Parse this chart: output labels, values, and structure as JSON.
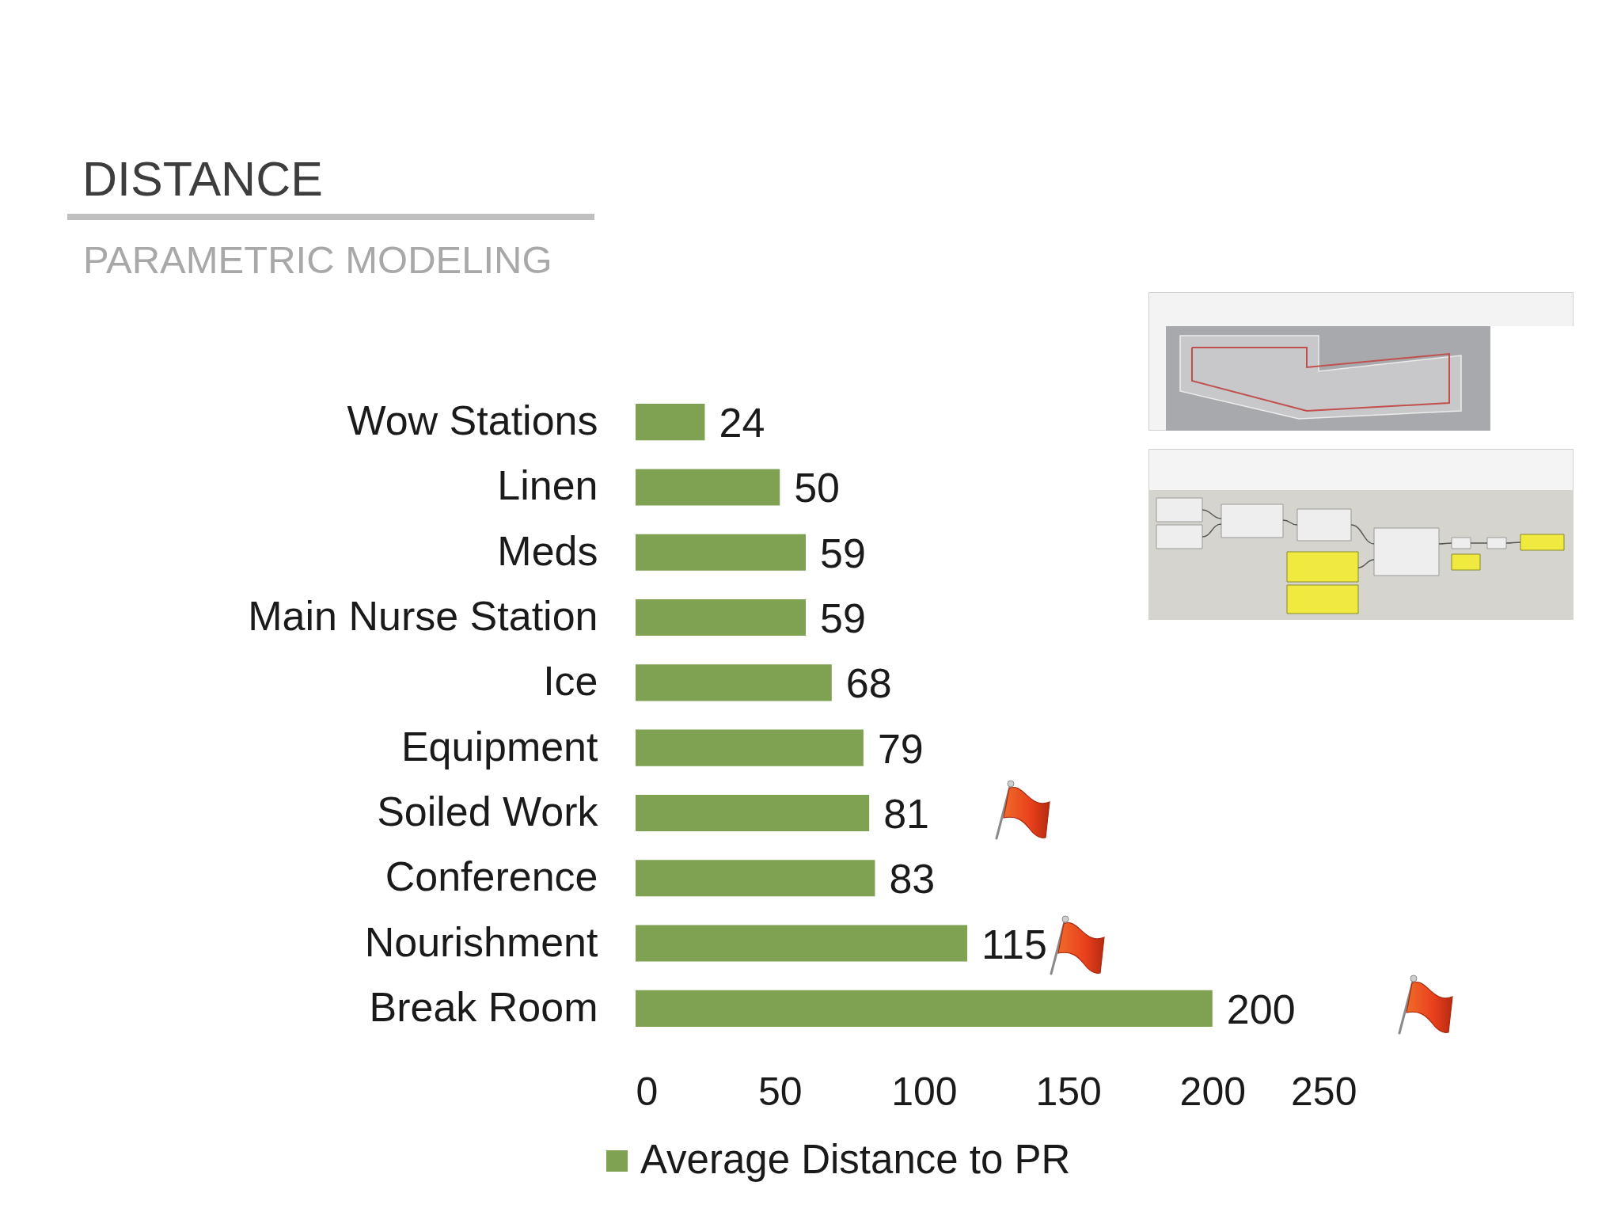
{
  "chart_data": {
    "type": "bar",
    "orientation": "horizontal",
    "title": "DISTANCE",
    "subtitle": "PARAMETRIC MODELING",
    "categories": [
      "Wow Stations",
      "Linen",
      "Meds",
      "Main Nurse Station",
      "Ice",
      "Equipment",
      "Soiled Work",
      "Conference",
      "Nourishment",
      "Break Room"
    ],
    "series": [
      {
        "name": "Average Distance to PR",
        "color": "#7ea152",
        "values": [
          24,
          50,
          59,
          59,
          68,
          79,
          81,
          83,
          115,
          200
        ]
      }
    ],
    "xlim": [
      0,
      250
    ],
    "xticks": [
      0,
      50,
      100,
      150,
      200,
      250
    ],
    "data_labels": true,
    "legend": "bottom"
  }
}
